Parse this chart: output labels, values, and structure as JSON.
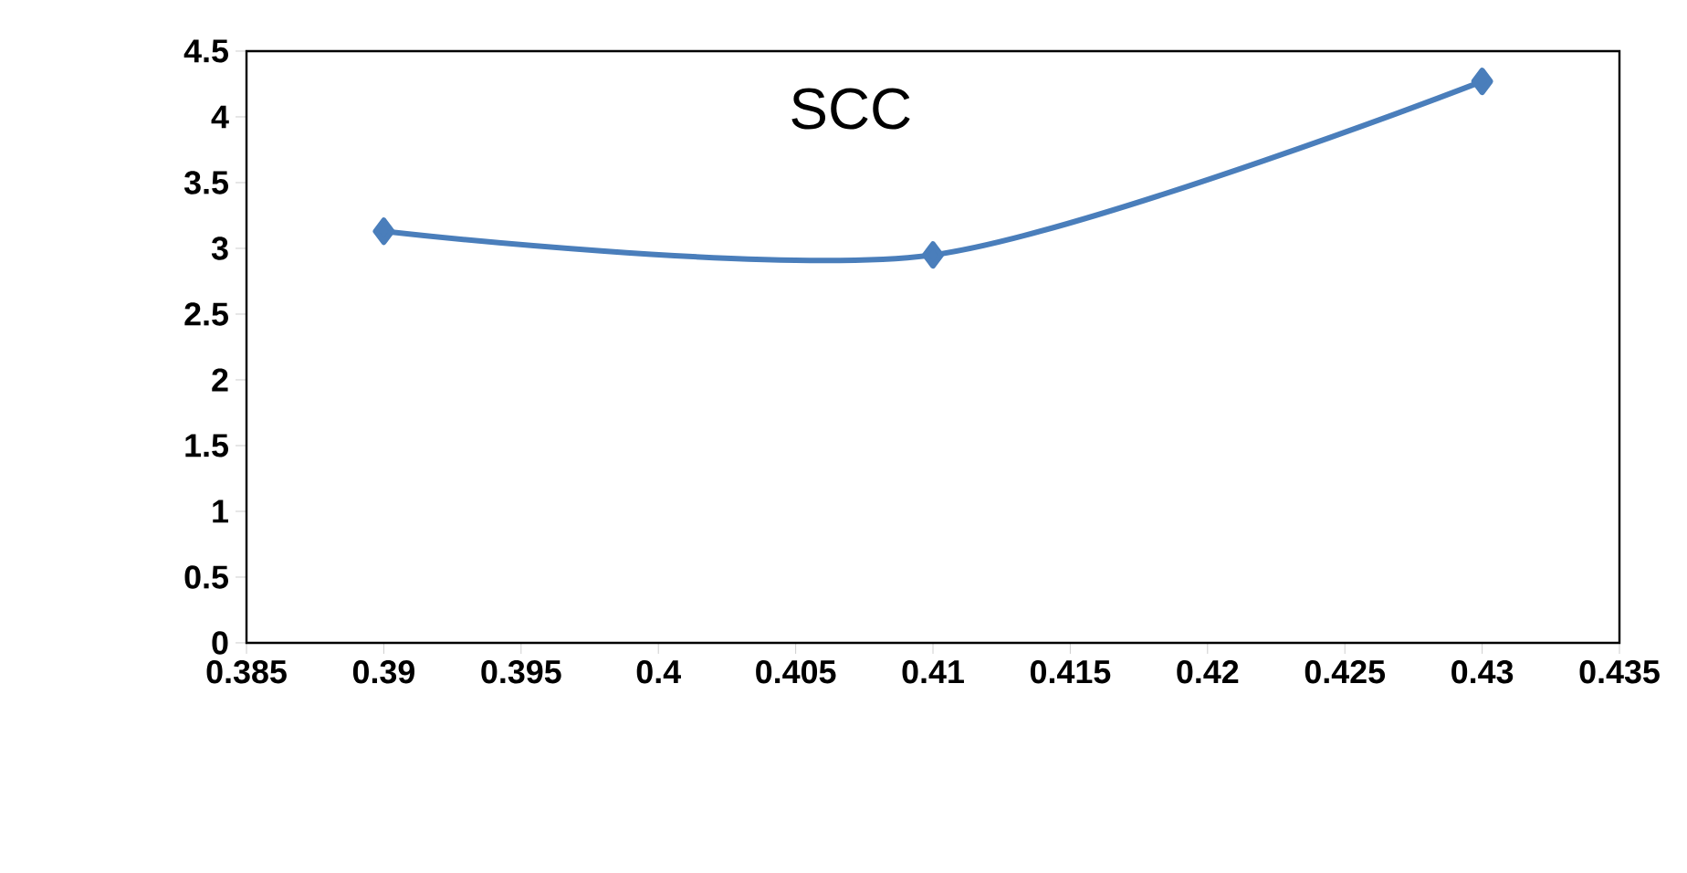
{
  "chart_data": {
    "type": "line",
    "title": "SCC",
    "x": [
      0.39,
      0.41,
      0.43
    ],
    "series": [
      {
        "color": "#4a7ebb",
        "values": [
          3.13,
          2.95,
          4.27
        ]
      }
    ],
    "xlim": [
      0.385,
      0.435
    ],
    "xticks": [
      0.385,
      0.39,
      0.395,
      0.4,
      0.405,
      0.41,
      0.415,
      0.42,
      0.425,
      0.43,
      0.435
    ],
    "ylim": [
      0,
      4.5
    ],
    "yticks": [
      0,
      0.5,
      1,
      1.5,
      2,
      2.5,
      3,
      3.5,
      4,
      4.5
    ],
    "marker": "diamond",
    "line_style": "solid"
  }
}
